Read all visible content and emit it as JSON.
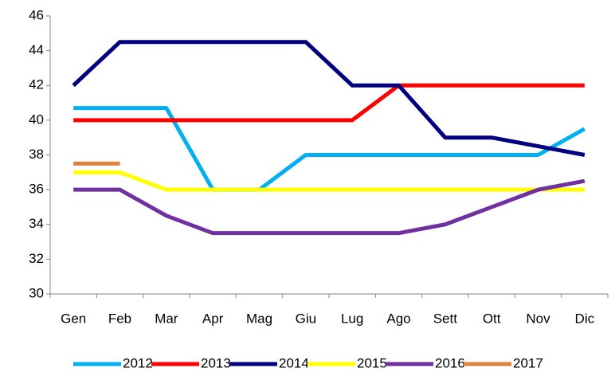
{
  "chart_data": {
    "type": "line",
    "categories": [
      "Gen",
      "Feb",
      "Mar",
      "Apr",
      "Mag",
      "Giu",
      "Lug",
      "Ago",
      "Sett",
      "Ott",
      "Nov",
      "Dic"
    ],
    "ylim": [
      30,
      46
    ],
    "yticks": [
      30,
      32,
      34,
      36,
      38,
      40,
      42,
      44,
      46
    ],
    "grid": false,
    "legend": "bottom",
    "series": [
      {
        "name": "2012",
        "color": "#00b0f0",
        "values": [
          40.7,
          40.7,
          40.7,
          36,
          36,
          38,
          38,
          38,
          38,
          38,
          38,
          39.5
        ]
      },
      {
        "name": "2013",
        "color": "#ff0000",
        "values": [
          40,
          40,
          40,
          40,
          40,
          40,
          40,
          42,
          42,
          42,
          42,
          42
        ]
      },
      {
        "name": "2014",
        "color": "#000080",
        "values": [
          42,
          44.5,
          44.5,
          44.5,
          44.5,
          44.5,
          42,
          42,
          39,
          39,
          38.5,
          38
        ]
      },
      {
        "name": "2015",
        "color": "#ffff00",
        "values": [
          37,
          37,
          36,
          36,
          36,
          36,
          36,
          36,
          36,
          36,
          36,
          36
        ]
      },
      {
        "name": "2016",
        "color": "#7030a0",
        "values": [
          36,
          36,
          34.5,
          33.5,
          33.5,
          33.5,
          33.5,
          33.5,
          34,
          35,
          36,
          36.5
        ]
      },
      {
        "name": "2017",
        "color": "#e0823f",
        "values": [
          37.5,
          37.5,
          null,
          null,
          null,
          null,
          null,
          null,
          null,
          null,
          null,
          null
        ]
      }
    ]
  }
}
